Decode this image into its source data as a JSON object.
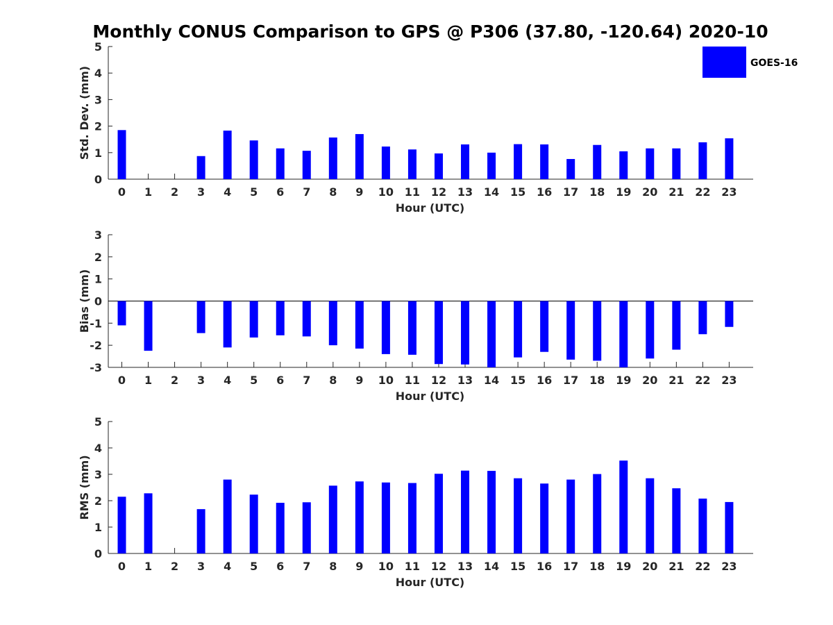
{
  "title": "Monthly CONUS Comparison to GPS @ P306 (37.80, -120.64) 2020-10",
  "legend": {
    "label": "GOES-16",
    "placement": "top-right"
  },
  "colors": {
    "bar": "#0000ff",
    "axis": "#262626"
  },
  "chart_data": [
    {
      "type": "bar",
      "series": [
        {
          "name": "GOES-16",
          "values": [
            1.85,
            null,
            null,
            0.87,
            1.83,
            1.46,
            1.16,
            1.07,
            1.57,
            1.7,
            1.23,
            1.12,
            0.97,
            1.31,
            1.0,
            1.32,
            1.31,
            0.76,
            1.29,
            1.05,
            1.16,
            1.16,
            1.39,
            1.54
          ]
        }
      ],
      "categories": [
        "0",
        "1",
        "2",
        "3",
        "4",
        "5",
        "6",
        "7",
        "8",
        "9",
        "10",
        "11",
        "12",
        "13",
        "14",
        "15",
        "16",
        "17",
        "18",
        "19",
        "20",
        "21",
        "22",
        "23"
      ],
      "xlabel": "Hour (UTC)",
      "ylabel": "Std. Dev. (mm)",
      "ylim": [
        0,
        5
      ],
      "yticks": [
        "0",
        "1",
        "2",
        "3",
        "4",
        "5"
      ],
      "grid": false
    },
    {
      "type": "bar",
      "series": [
        {
          "name": "GOES-16",
          "values": [
            -1.1,
            -2.25,
            null,
            -1.45,
            -2.1,
            -1.65,
            -1.55,
            -1.6,
            -2.0,
            -2.15,
            -2.4,
            -2.43,
            -2.85,
            -2.87,
            -3.0,
            -2.55,
            -2.3,
            -2.65,
            -2.7,
            -3.0,
            -2.6,
            -2.2,
            -1.5,
            -1.17
          ]
        }
      ],
      "categories": [
        "0",
        "1",
        "2",
        "3",
        "4",
        "5",
        "6",
        "7",
        "8",
        "9",
        "10",
        "11",
        "12",
        "13",
        "14",
        "15",
        "16",
        "17",
        "18",
        "19",
        "20",
        "21",
        "22",
        "23"
      ],
      "xlabel": "Hour (UTC)",
      "ylabel": "Bias (mm)",
      "ylim": [
        -3,
        3
      ],
      "yticks": [
        "-3",
        "-2",
        "-1",
        "0",
        "1",
        "2",
        "3"
      ],
      "grid": false
    },
    {
      "type": "bar",
      "series": [
        {
          "name": "GOES-16",
          "values": [
            2.15,
            2.28,
            null,
            1.68,
            2.8,
            2.23,
            1.92,
            1.94,
            2.57,
            2.73,
            2.69,
            2.67,
            3.02,
            3.14,
            3.13,
            2.85,
            2.65,
            2.8,
            3.01,
            3.52,
            2.85,
            2.47,
            2.08,
            1.95
          ]
        }
      ],
      "categories": [
        "0",
        "1",
        "2",
        "3",
        "4",
        "5",
        "6",
        "7",
        "8",
        "9",
        "10",
        "11",
        "12",
        "13",
        "14",
        "15",
        "16",
        "17",
        "18",
        "19",
        "20",
        "21",
        "22",
        "23"
      ],
      "xlabel": "Hour (UTC)",
      "ylabel": "RMS (mm)",
      "ylim": [
        0,
        5
      ],
      "yticks": [
        "0",
        "1",
        "2",
        "3",
        "4",
        "5"
      ],
      "grid": false
    }
  ]
}
